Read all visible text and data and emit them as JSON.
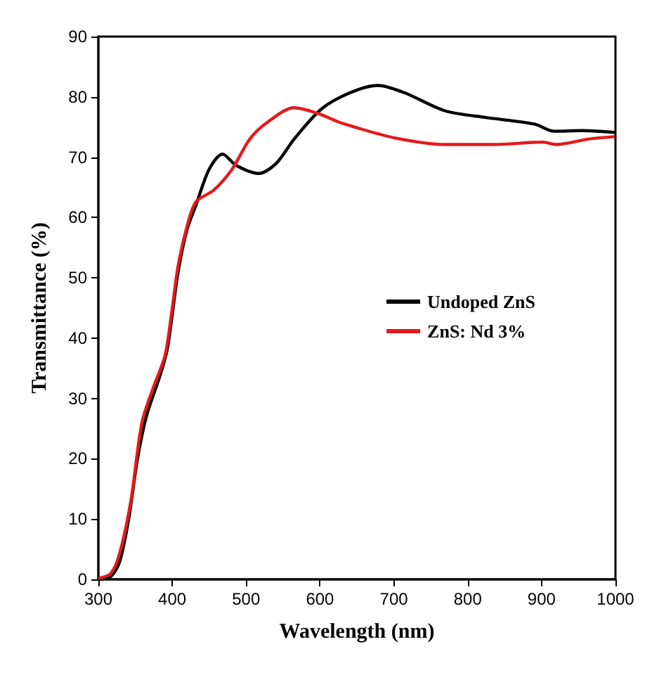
{
  "chart_data": {
    "type": "line",
    "xlabel": "Wavelength (nm)",
    "ylabel": "Transmittance (%)",
    "xlim": [
      300,
      1000
    ],
    "xticks": [
      300,
      400,
      500,
      600,
      700,
      800,
      900,
      1000
    ],
    "ylim": [
      0,
      90
    ],
    "yticks": [
      0,
      10,
      20,
      30,
      40,
      50,
      60,
      70,
      80,
      90
    ],
    "grid": false,
    "legend": "right",
    "marker": "none",
    "line_style": "solid",
    "series": [
      {
        "name": "Undoped ZnS",
        "color": "#000000",
        "x": [
          300,
          317,
          329,
          341,
          353,
          365,
          384,
          393,
          399,
          408,
          420,
          432,
          450,
          468,
          487,
          517,
          541,
          565,
          602,
          641,
          678,
          714,
          769,
          823,
          890,
          917,
          956,
          999
        ],
        "values": [
          0,
          0.5,
          3,
          10,
          20,
          27,
          34,
          38,
          43,
          51,
          58,
          62,
          68,
          70.5,
          68.6,
          67.3,
          69,
          73,
          78,
          80.7,
          81.9,
          80.7,
          77.7,
          76.6,
          75.5,
          74.3,
          74.4,
          74.1
        ]
      },
      {
        "name": "ZnS: Nd 3%",
        "color": "#e41a1c",
        "x": [
          300,
          317,
          329,
          344,
          359,
          375,
          390,
          399,
          408,
          420,
          432,
          456,
          481,
          505,
          529,
          565,
          596,
          626,
          641,
          701,
          769,
          835,
          902,
          920,
          963,
          999
        ],
        "values": [
          0.15,
          1,
          4.4,
          13,
          26,
          32,
          37,
          44,
          52,
          58.5,
          62.6,
          64.5,
          68,
          73,
          75.8,
          78.2,
          77.3,
          75.8,
          75.2,
          73.2,
          72.1,
          72.1,
          72.5,
          72.1,
          73,
          73.4
        ]
      }
    ]
  }
}
